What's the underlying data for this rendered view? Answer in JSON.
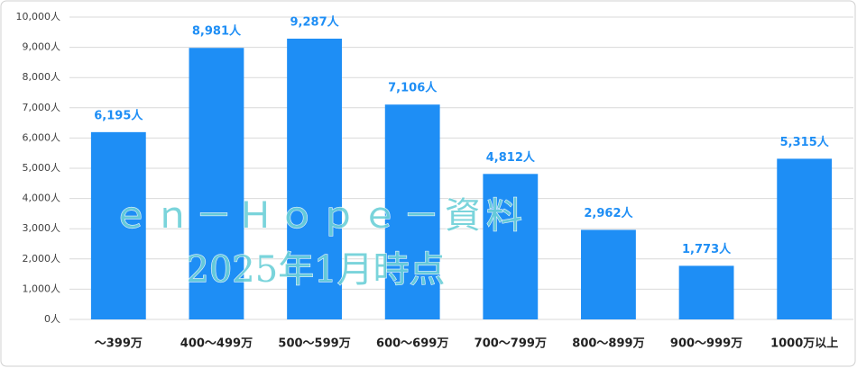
{
  "chart_data": {
    "type": "bar",
    "categories": [
      "～399万",
      "400～499万",
      "500～599万",
      "600～699万",
      "700～799万",
      "800～899万",
      "900～999万",
      "1000万以上"
    ],
    "values": [
      6195,
      8981,
      9287,
      7106,
      4812,
      2962,
      1773,
      5315
    ],
    "value_labels": [
      "6,195人",
      "8,981人",
      "9,287人",
      "7,106人",
      "4,812人",
      "2,962人",
      "1,773人",
      "5,315人"
    ],
    "color": "#1e8ef5",
    "ylim": [
      0,
      10000
    ],
    "yticks": [
      {
        "value": 0,
        "label": "0人"
      },
      {
        "value": 1000,
        "label": "1,000人"
      },
      {
        "value": 2000,
        "label": "2,000人"
      },
      {
        "value": 3000,
        "label": "3,000人"
      },
      {
        "value": 4000,
        "label": "4,000人"
      },
      {
        "value": 5000,
        "label": "5,000人"
      },
      {
        "value": 6000,
        "label": "6,000人"
      },
      {
        "value": 7000,
        "label": "7,000人"
      },
      {
        "value": 8000,
        "label": "8,000人"
      },
      {
        "value": 9000,
        "label": "9,000人"
      },
      {
        "value": 10000,
        "label": "10,000人"
      }
    ],
    "grid": true,
    "annotations": [
      "ｅｎ－Ｈｏｐｅ－資料",
      "2025年1月時点"
    ]
  }
}
